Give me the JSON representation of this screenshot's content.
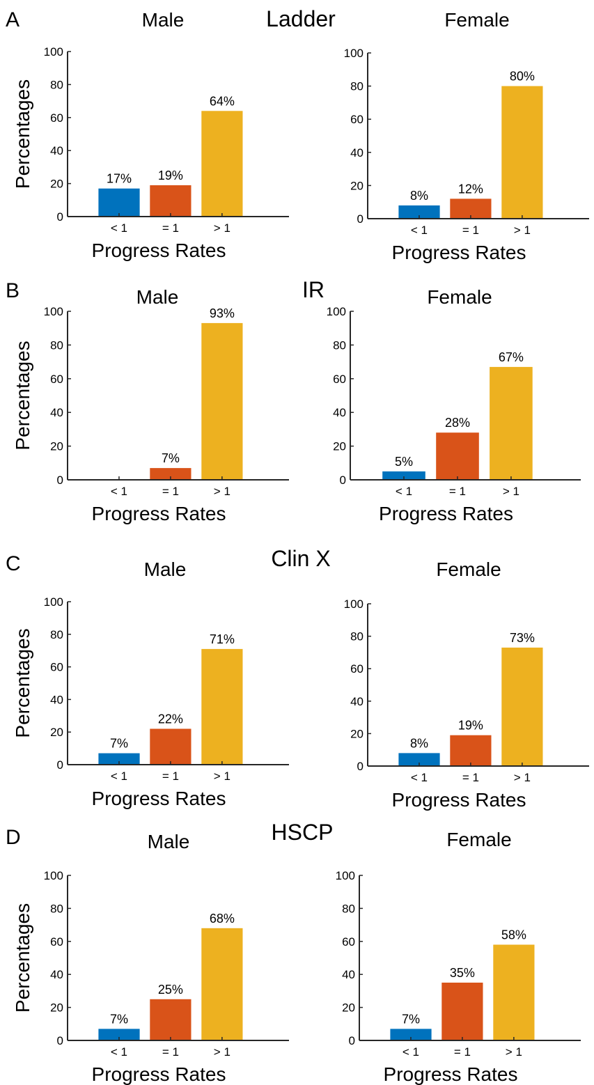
{
  "colors": {
    "lt1": "#0072BD",
    "eq1": "#D95319",
    "gt1": "#EDB120",
    "axis": "#262626"
  },
  "panels": [
    {
      "letter": "A",
      "group_title": "Ladder"
    },
    {
      "letter": "B",
      "group_title": "IR"
    },
    {
      "letter": "C",
      "group_title": "Clin X"
    },
    {
      "letter": "D",
      "group_title": "HSCP"
    }
  ],
  "chart_data": [
    {
      "type": "bar",
      "title": "Male",
      "panel": "A",
      "categories": [
        "< 1",
        "= 1",
        "> 1"
      ],
      "values": [
        17,
        19,
        64
      ],
      "labels": [
        "17%",
        "19%",
        "64%"
      ],
      "xlabel": "Progress Rates",
      "ylabel": "Percentages",
      "ylim": [
        0,
        100
      ],
      "yticks": [
        "0",
        "20",
        "40",
        "60",
        "80",
        "100"
      ],
      "grid": false
    },
    {
      "type": "bar",
      "title": "Female",
      "panel": "A",
      "categories": [
        "< 1",
        "= 1",
        "> 1"
      ],
      "values": [
        8,
        12,
        80
      ],
      "labels": [
        "8%",
        "12%",
        "80%"
      ],
      "xlabel": "Progress Rates",
      "ylabel": "",
      "ylim": [
        0,
        100
      ],
      "yticks": [
        "0",
        "20",
        "40",
        "60",
        "80",
        "100"
      ],
      "grid": false
    },
    {
      "type": "bar",
      "title": "Male",
      "panel": "B",
      "categories": [
        "< 1",
        "= 1",
        "> 1"
      ],
      "values": [
        0,
        7,
        93
      ],
      "labels": [
        "",
        "7%",
        "93%"
      ],
      "xlabel": "Progress Rates",
      "ylabel": "Percentages",
      "ylim": [
        0,
        100
      ],
      "yticks": [
        "0",
        "20",
        "40",
        "60",
        "80",
        "100"
      ],
      "grid": false
    },
    {
      "type": "bar",
      "title": "Female",
      "panel": "B",
      "categories": [
        "< 1",
        "= 1",
        "> 1"
      ],
      "values": [
        5,
        28,
        67
      ],
      "labels": [
        "5%",
        "28%",
        "67%"
      ],
      "xlabel": "Progress Rates",
      "ylabel": "",
      "ylim": [
        0,
        100
      ],
      "yticks": [
        "0",
        "20",
        "40",
        "60",
        "80",
        "100"
      ],
      "grid": false
    },
    {
      "type": "bar",
      "title": "Male",
      "panel": "C",
      "categories": [
        "< 1",
        "= 1",
        "> 1"
      ],
      "values": [
        7,
        22,
        71
      ],
      "labels": [
        "7%",
        "22%",
        "71%"
      ],
      "xlabel": "Progress Rates",
      "ylabel": "Percentages",
      "ylim": [
        0,
        100
      ],
      "yticks": [
        "0",
        "20",
        "40",
        "60",
        "80",
        "100"
      ],
      "grid": false
    },
    {
      "type": "bar",
      "title": "Female",
      "panel": "C",
      "categories": [
        "< 1",
        "= 1",
        "> 1"
      ],
      "values": [
        8,
        19,
        73
      ],
      "labels": [
        "8%",
        "19%",
        "73%"
      ],
      "xlabel": "Progress Rates",
      "ylabel": "",
      "ylim": [
        0,
        100
      ],
      "yticks": [
        "0",
        "20",
        "40",
        "60",
        "80",
        "100"
      ],
      "grid": false
    },
    {
      "type": "bar",
      "title": "Male",
      "panel": "D",
      "categories": [
        "< 1",
        "= 1",
        "> 1"
      ],
      "values": [
        7,
        25,
        68
      ],
      "labels": [
        "7%",
        "25%",
        "68%"
      ],
      "xlabel": "Progress Rates",
      "ylabel": "Percentages",
      "ylim": [
        0,
        100
      ],
      "yticks": [
        "0",
        "20",
        "40",
        "60",
        "80",
        "100"
      ],
      "grid": false
    },
    {
      "type": "bar",
      "title": "Female",
      "panel": "D",
      "categories": [
        "< 1",
        "= 1",
        "> 1"
      ],
      "values": [
        7,
        35,
        58
      ],
      "labels": [
        "7%",
        "35%",
        "58%"
      ],
      "xlabel": "Progress Rates",
      "ylabel": "",
      "ylim": [
        0,
        100
      ],
      "yticks": [
        "0",
        "20",
        "40",
        "60",
        "80",
        "100"
      ],
      "grid": false
    }
  ]
}
